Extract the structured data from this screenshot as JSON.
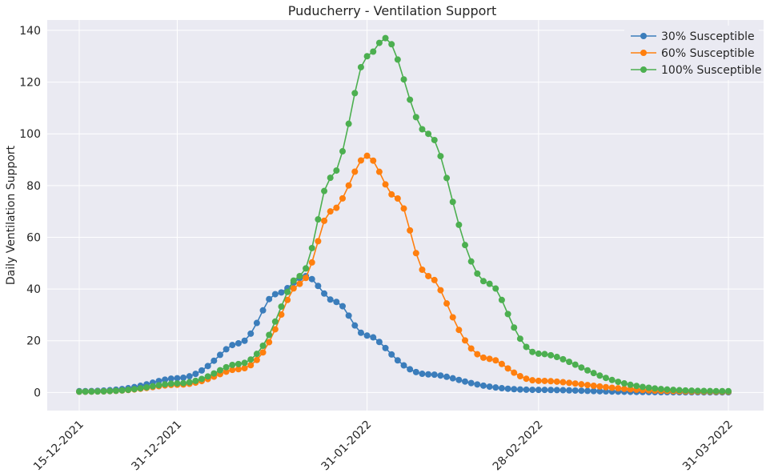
{
  "chart_data": {
    "type": "line",
    "title": "Puducherry - Ventilation Support",
    "xlabel": "",
    "ylabel": "Daily Ventilation Support",
    "x_start": "15-12-2021",
    "x_end": "31-03-2022",
    "x_ticks": [
      "15-12-2021",
      "31-12-2021",
      "31-01-2022",
      "28-02-2022",
      "31-03-2022"
    ],
    "ylim": [
      -7,
      144
    ],
    "y_ticks": [
      0,
      20,
      40,
      60,
      80,
      100,
      120,
      140
    ],
    "grid": true,
    "legend_position": "top-right",
    "marker": "circle",
    "series": [
      {
        "name": "30% Susceptible",
        "color": "#3b7dbb",
        "peak_date": "21-01-2022",
        "peak_value": 45,
        "points": [
          [
            "15-12-2021",
            0.5
          ],
          [
            "31-12-2021",
            5.5
          ],
          [
            "10-01-2022",
            19
          ],
          [
            "16-01-2022",
            38
          ],
          [
            "21-01-2022",
            45
          ],
          [
            "26-01-2022",
            35
          ],
          [
            "31-01-2022",
            22
          ],
          [
            "10-02-2022",
            7
          ],
          [
            "28-02-2022",
            1
          ],
          [
            "31-03-2022",
            0
          ]
        ]
      },
      {
        "name": "60% Susceptible",
        "color": "#ff7f0e",
        "peak_date": "31-01-2022",
        "peak_value": 91.5,
        "points": [
          [
            "15-12-2021",
            0.3
          ],
          [
            "31-12-2021",
            3
          ],
          [
            "10-01-2022",
            9
          ],
          [
            "20-01-2022",
            42
          ],
          [
            "25-01-2022",
            70
          ],
          [
            "31-01-2022",
            91.5
          ],
          [
            "05-02-2022",
            75
          ],
          [
            "10-02-2022",
            45
          ],
          [
            "20-02-2022",
            13
          ],
          [
            "28-02-2022",
            4.5
          ],
          [
            "31-03-2022",
            0.3
          ]
        ]
      },
      {
        "name": "100% Susceptible",
        "color": "#4caf50",
        "peak_date": "03-02-2022",
        "peak_value": 137,
        "points": [
          [
            "15-12-2021",
            0.3
          ],
          [
            "31-12-2021",
            3.5
          ],
          [
            "10-01-2022",
            11
          ],
          [
            "20-01-2022",
            45
          ],
          [
            "25-01-2022",
            83
          ],
          [
            "31-01-2022",
            130
          ],
          [
            "03-02-2022",
            137
          ],
          [
            "10-02-2022",
            100
          ],
          [
            "20-02-2022",
            42
          ],
          [
            "28-02-2022",
            15
          ],
          [
            "31-03-2022",
            0.5
          ]
        ]
      }
    ]
  }
}
